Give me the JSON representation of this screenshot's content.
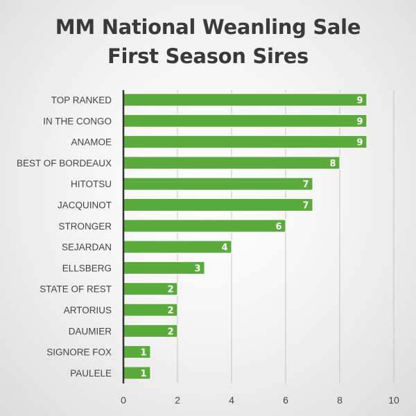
{
  "chart_data": {
    "type": "bar",
    "orientation": "horizontal",
    "title": "MM National Weanling Sale",
    "subtitle": "First Season Sires",
    "categories": [
      "TOP RANKED",
      "IN THE CONGO",
      "ANAMOE",
      "BEST OF BORDEAUX",
      "HITOTSU",
      "JACQUINOT",
      "STRONGER",
      "SEJARDAN",
      "ELLSBERG",
      "STATE OF REST",
      "ARTORIUS",
      "DAUMIER",
      "SIGNORE FOX",
      "PAULELE"
    ],
    "values": [
      9,
      9,
      9,
      8,
      7,
      7,
      6,
      4,
      3,
      2,
      2,
      2,
      1,
      1
    ],
    "xlabel": "",
    "ylabel": "",
    "xlim": [
      0,
      10
    ],
    "xticks": [
      0,
      2,
      4,
      6,
      8,
      10
    ],
    "grid": true,
    "data_labels": true,
    "bar_color": "#5aab3c",
    "legend": "none"
  }
}
